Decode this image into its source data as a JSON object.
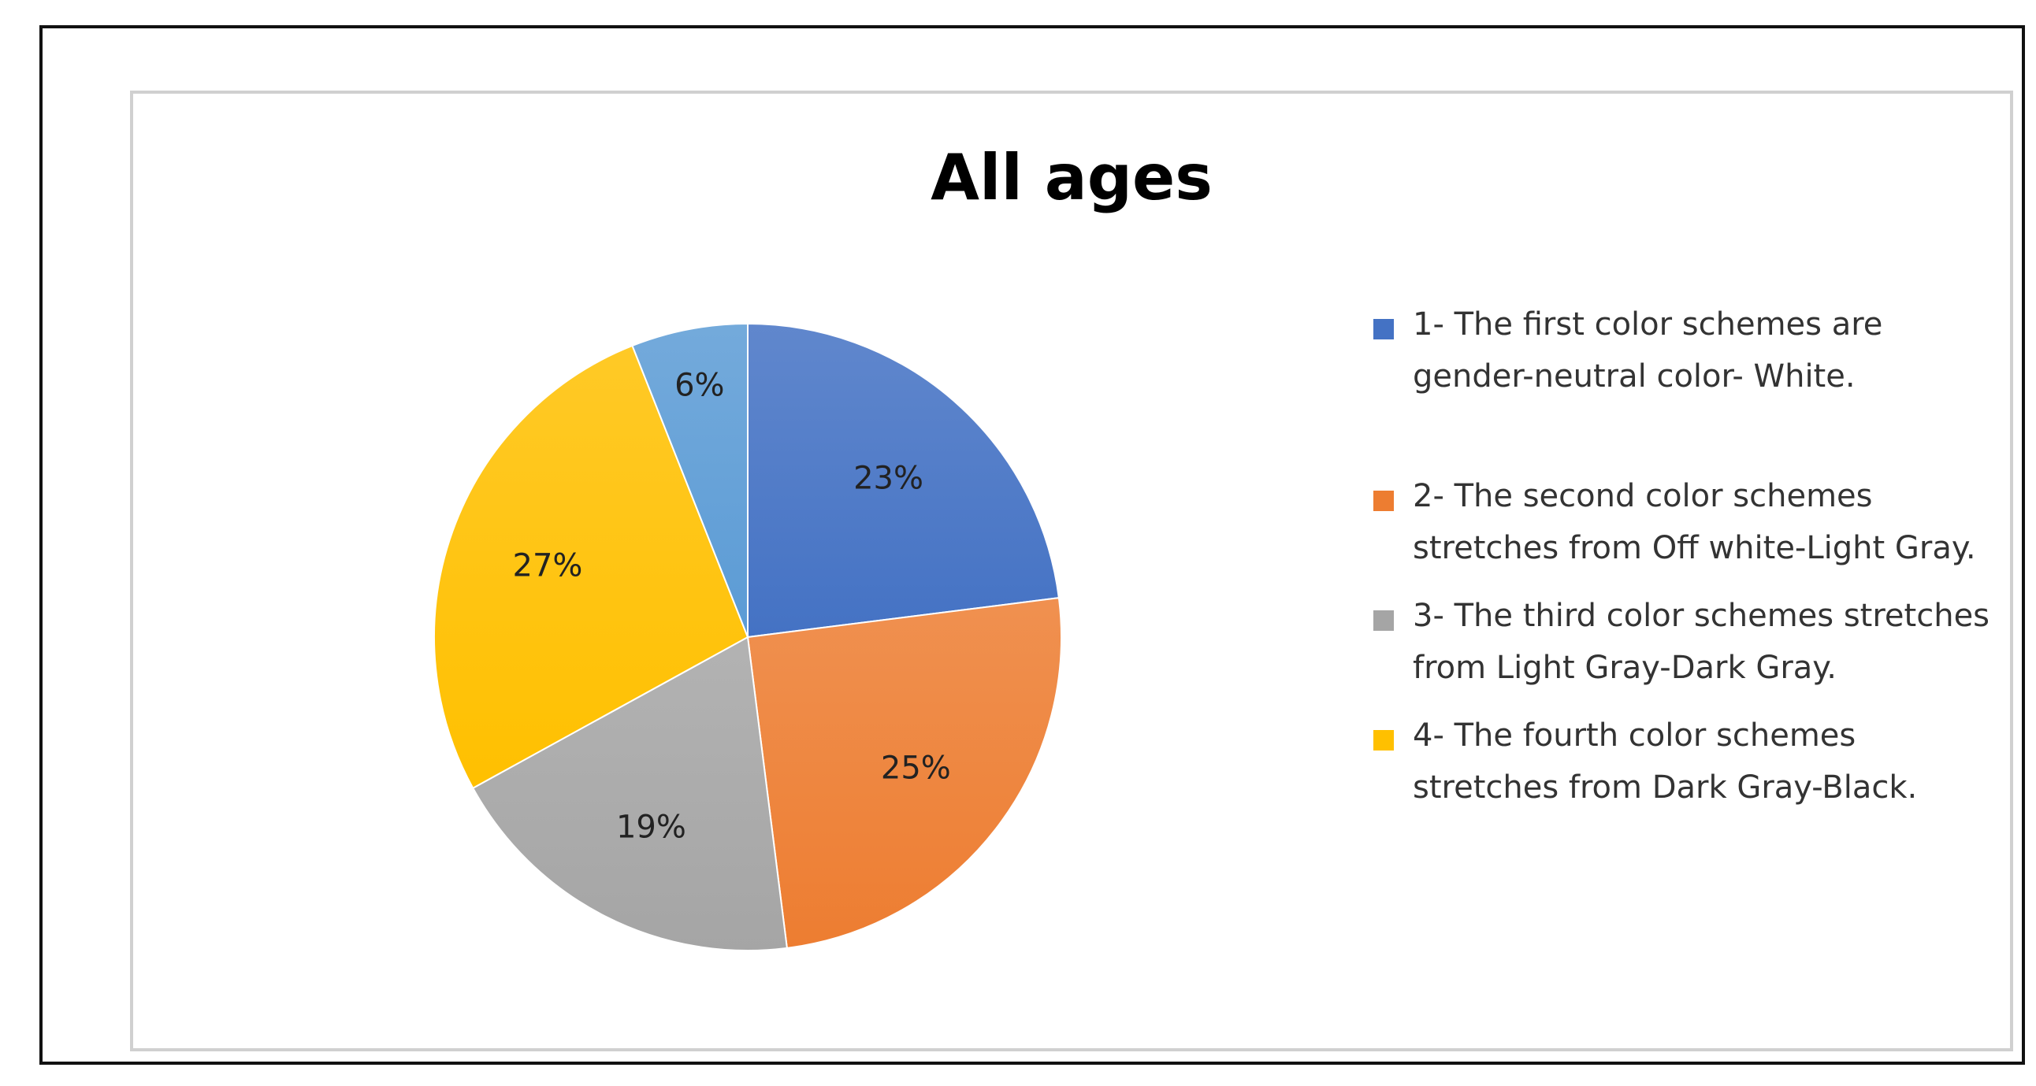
{
  "chart_data": {
    "type": "pie",
    "title": "All ages",
    "slices": [
      {
        "label": "1- The first color schemes are gender-neutral color- White.",
        "value": 23,
        "display": "23%",
        "color": "#4472C4"
      },
      {
        "label": "2- The second color schemes stretches from Off white-Light Gray.",
        "value": 25,
        "display": "25%",
        "color": "#ED7D31"
      },
      {
        "label": "3- The third color schemes stretches from Light Gray-Dark Gray.",
        "value": 19,
        "display": "19%",
        "color": "#A5A5A5"
      },
      {
        "label": "4- The fourth color schemes stretches from Dark Gray-Black.",
        "value": 27,
        "display": "27%",
        "color": "#FFC000"
      },
      {
        "label": "",
        "value": 6,
        "display": "6%",
        "color": "#5B9BD5"
      }
    ],
    "legend_position": "right"
  }
}
